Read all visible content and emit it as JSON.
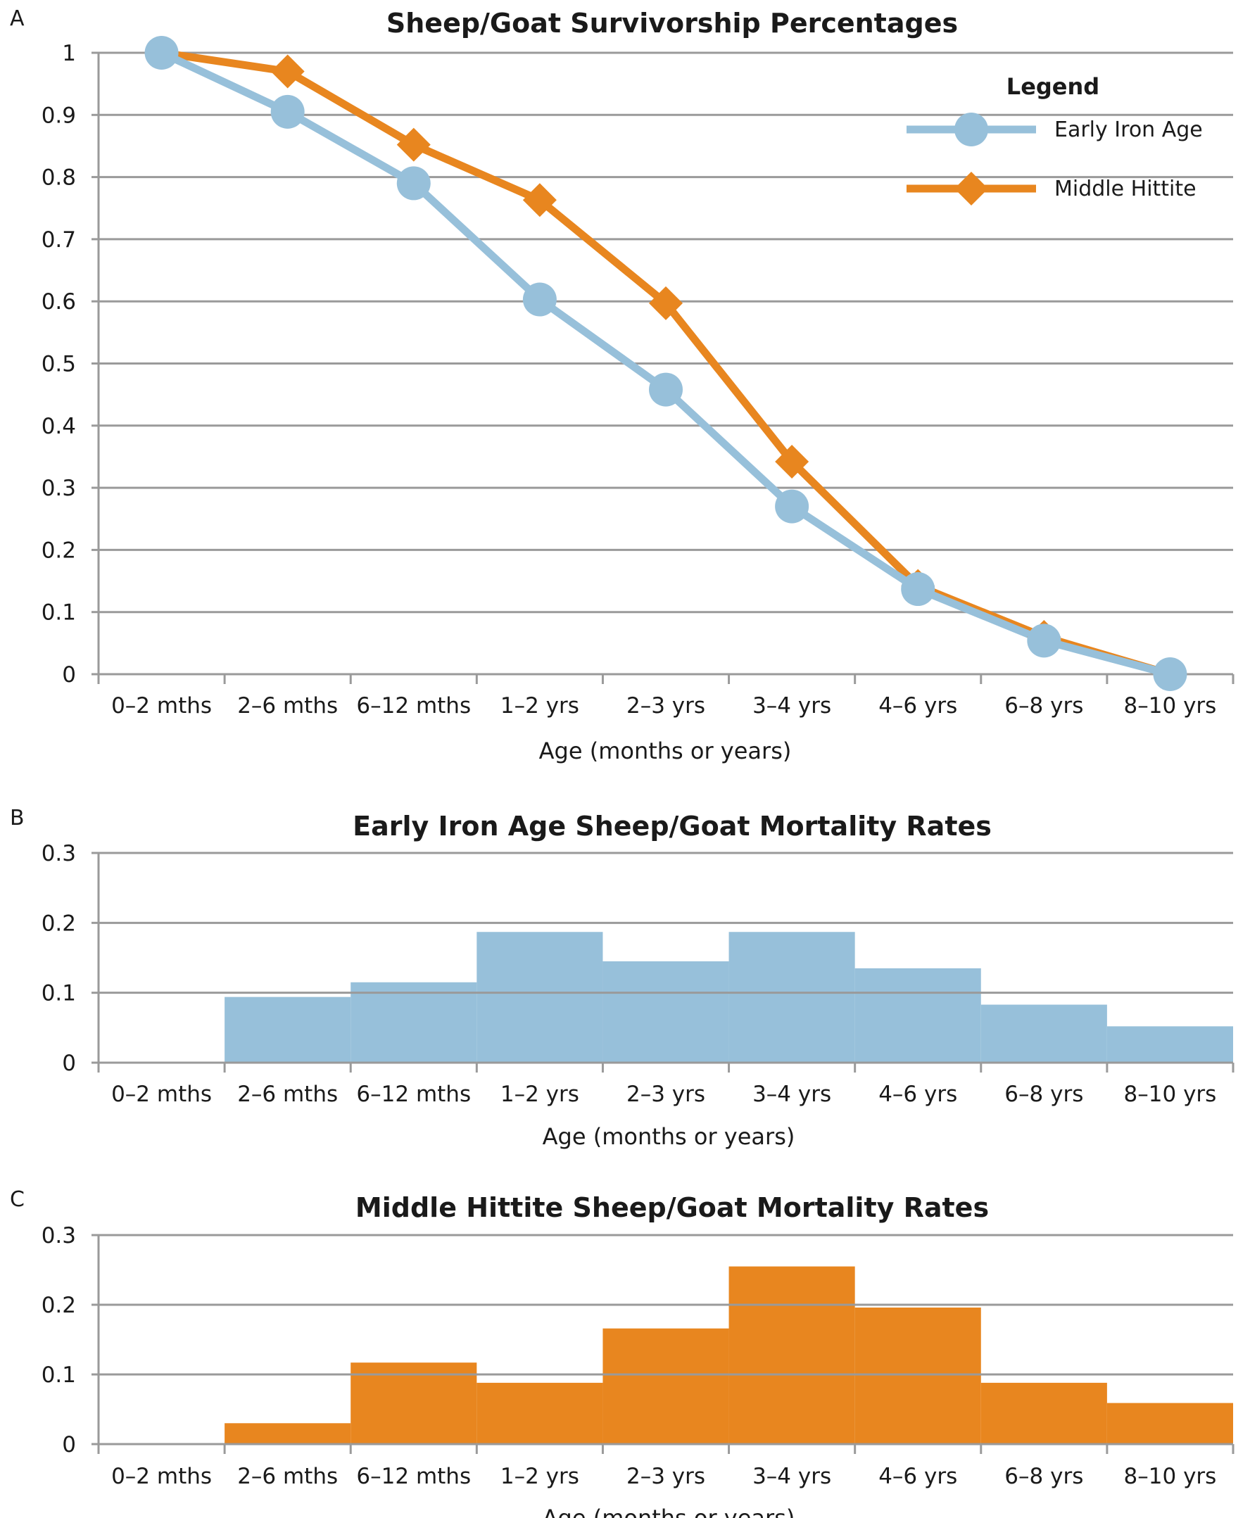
{
  "colors": {
    "early_iron_age": "#97c0da",
    "middle_hittite": "#e8861f",
    "grid": "#9a9a9a"
  },
  "chart_data": [
    {
      "panel": "A",
      "type": "line",
      "title": "Sheep/Goat Survivorship Percentages",
      "xlabel": "Age (months or years)",
      "ylabel": "",
      "categories": [
        "0–2 mths",
        "2–6 mths",
        "6–12 mths",
        "1–2 yrs",
        "2–3 yrs",
        "3–4 yrs",
        "4–6 yrs",
        "6–8 yrs",
        "8–10 yrs"
      ],
      "yticks": [
        "0",
        "0.1",
        "0.2",
        "0.3",
        "0.4",
        "0.5",
        "0.6",
        "0.7",
        "0.8",
        "0.9",
        "1"
      ],
      "ylim": [
        0,
        1
      ],
      "grid": true,
      "legend": {
        "title": "Legend",
        "placement": "top-right"
      },
      "series": [
        {
          "name": "Early Iron Age",
          "marker": "circle",
          "color": "#97c0da",
          "values": [
            1.0,
            0.905,
            0.79,
            0.603,
            0.458,
            0.27,
            0.137,
            0.054,
            0.0
          ]
        },
        {
          "name": "Middle Hittite",
          "marker": "diamond",
          "color": "#e8861f",
          "values": [
            1.0,
            0.97,
            0.852,
            0.763,
            0.597,
            0.342,
            0.142,
            0.06,
            0.0
          ]
        }
      ]
    },
    {
      "panel": "B",
      "type": "bar",
      "title": "Early Iron Age Sheep/Goat Mortality Rates",
      "xlabel": "Age (months or years)",
      "ylabel": "",
      "categories": [
        "0–2 mths",
        "2–6 mths",
        "6–12 mths",
        "1–2 yrs",
        "2–3 yrs",
        "3–4 yrs",
        "4–6 yrs",
        "6–8 yrs",
        "8–10 yrs"
      ],
      "yticks": [
        "0",
        "0.1",
        "0.2",
        "0.3"
      ],
      "ylim": [
        0,
        0.3
      ],
      "grid": true,
      "color": "#97c0da",
      "values": [
        0,
        0.094,
        0.115,
        0.187,
        0.145,
        0.187,
        0.135,
        0.083,
        0.052
      ]
    },
    {
      "panel": "C",
      "type": "bar",
      "title": "Middle Hittite Sheep/Goat Mortality Rates",
      "xlabel": "Age (months or years)",
      "ylabel": "",
      "categories": [
        "0–2 mths",
        "2–6 mths",
        "6–12 mths",
        "1–2 yrs",
        "2–3 yrs",
        "3–4 yrs",
        "4–6 yrs",
        "6–8 yrs",
        "8–10 yrs"
      ],
      "yticks": [
        "0",
        "0.1",
        "0.2",
        "0.3"
      ],
      "ylim": [
        0,
        0.3
      ],
      "grid": true,
      "color": "#e8861f",
      "values": [
        0,
        0.03,
        0.117,
        0.088,
        0.166,
        0.255,
        0.196,
        0.088,
        0.059
      ]
    }
  ]
}
